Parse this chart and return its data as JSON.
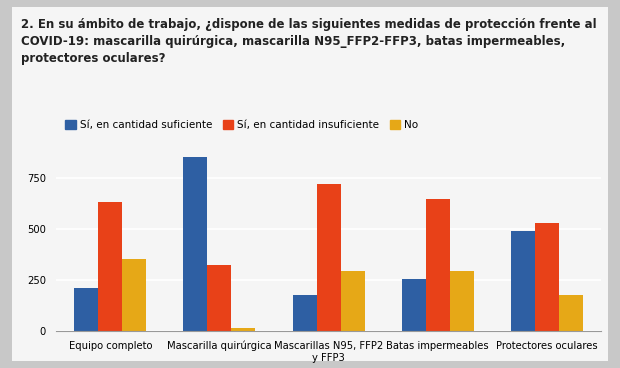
{
  "title_lines": [
    "2. En su ámbito de trabajo, ¿dispone de las siguientes medidas de protección frente al",
    "COVID-19: mascarilla quirúrgica, mascarilla N95_FFP2-FFP3, batas impermeables,",
    "protectores oculares?"
  ],
  "categories": [
    "Equipo completo",
    "Mascarilla quirúrgica",
    "Mascarillas N95, FFP2\ny FFP3",
    "Batas impermeables",
    "Protectores oculares"
  ],
  "series": {
    "Sí, en cantidad suficiente": [
      210,
      850,
      175,
      255,
      490
    ],
    "Sí, en cantidad insuficiente": [
      630,
      325,
      720,
      645,
      530
    ],
    "No": [
      355,
      18,
      295,
      295,
      175
    ]
  },
  "colors": {
    "Sí, en cantidad suficiente": "#2e5fa3",
    "Sí, en cantidad insuficiente": "#e84118",
    "No": "#e6a817"
  },
  "ylim": [
    0,
    900
  ],
  "yticks": [
    0,
    250,
    500,
    750
  ],
  "outer_bg": "#c8c8c8",
  "panel_bg": "#f5f5f5",
  "chart_bg": "#f5f5f5",
  "bar_width": 0.22,
  "title_fontsize": 8.5,
  "tick_fontsize": 7.2,
  "legend_fontsize": 7.5
}
